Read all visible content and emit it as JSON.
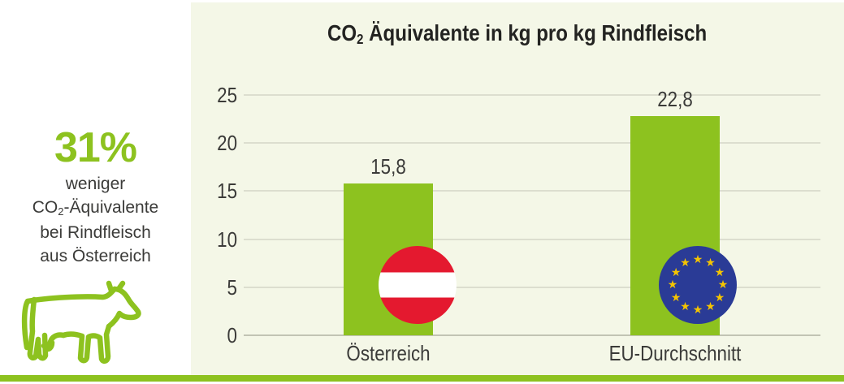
{
  "colors": {
    "green": "#8dc21f",
    "panel_background": "#f4f7e7",
    "text_dark": "#3b3b39",
    "title_dark": "#232321",
    "gridline": "#dcdecf",
    "baseline": "#c2c4b4",
    "austria_red": "#e4192f",
    "flag_white": "#ffffff",
    "eu_blue": "#2a3b96",
    "eu_star": "#f5c400"
  },
  "sidebar": {
    "stat_value": "31%",
    "line1": "weniger",
    "co2_prefix": "CO",
    "co2_sub": "2",
    "co2_suffix": "-Äquivalente",
    "line3": "bei Rindfleisch",
    "line4": "aus Österreich",
    "icon": "cow-icon"
  },
  "chart": {
    "title_prefix": "CO",
    "title_sub": "2",
    "title_suffix": " Äquivalente in kg pro kg Rindfleisch"
  },
  "chart_data": {
    "type": "bar",
    "title": "CO₂ Äquivalente in kg pro kg Rindfleisch",
    "categories": [
      "Österreich",
      "EU-Durchschnitt"
    ],
    "values": [
      15.8,
      22.8
    ],
    "value_labels": [
      "15,8",
      "22,8"
    ],
    "bar_flags": [
      "austria-flag",
      "eu-flag"
    ],
    "eu_star_count": 12,
    "y_ticks": [
      25,
      20,
      15,
      10,
      5,
      0
    ],
    "ylim": [
      0,
      25
    ],
    "xlabel": "",
    "ylabel": "",
    "grid": true,
    "legend": false,
    "bar_color": "#8dc21f"
  }
}
